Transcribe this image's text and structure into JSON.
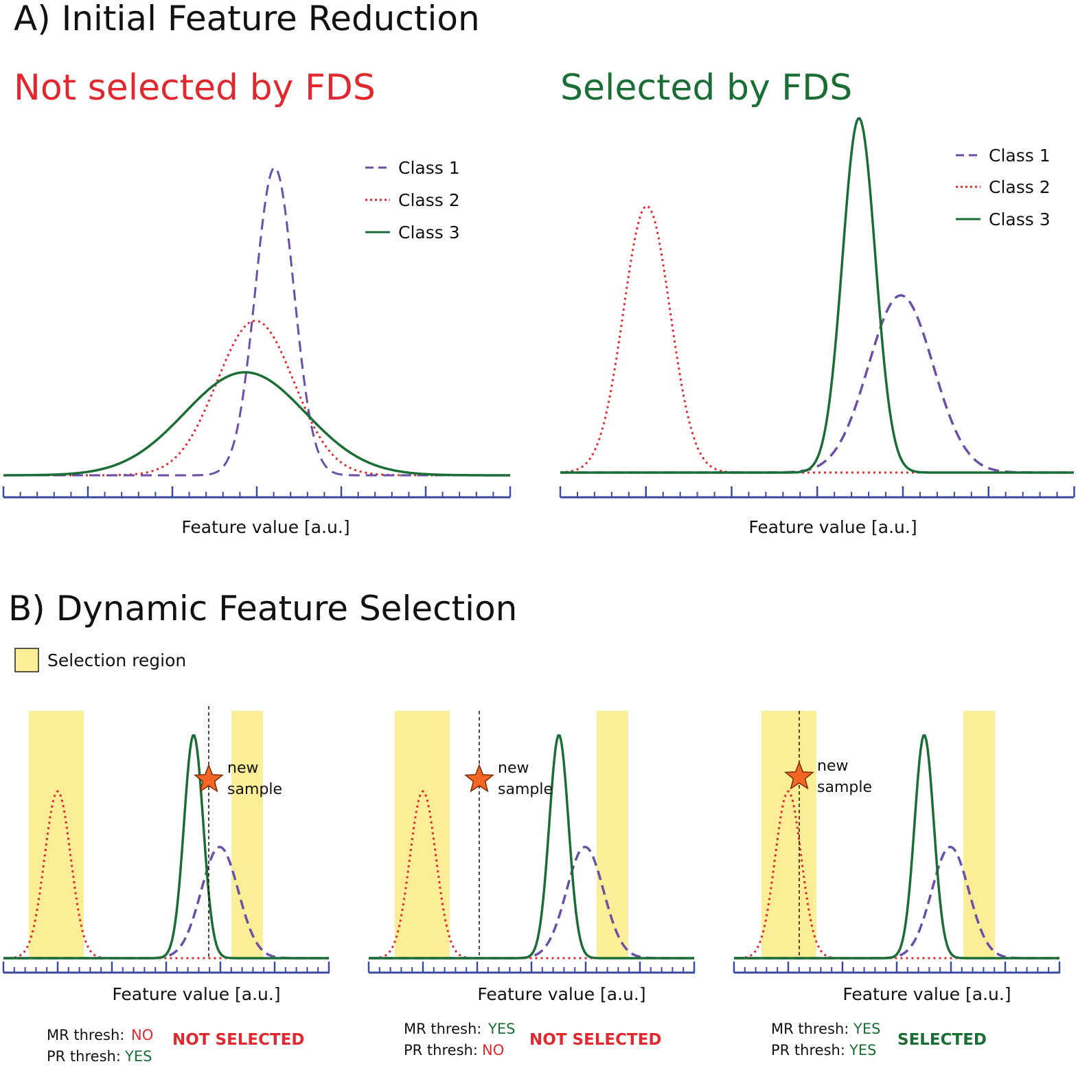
{
  "colors": {
    "class1": "#6a4fa8",
    "class2": "#e0292f",
    "class3": "#1a6e35",
    "axis": "#3a4aa0",
    "selection": "#fbee96",
    "star": "#f26522",
    "red_text": "#e0292f",
    "green_text": "#1a6e35"
  },
  "section_a": {
    "title": "A)  Initial Feature Reduction",
    "panel_left": {
      "heading": "Not selected by FDS",
      "xlabel": "Feature value [a.u.]",
      "legend": [
        "Class 1",
        "Class 2",
        "Class 3"
      ]
    },
    "panel_right": {
      "heading": "Selected by FDS",
      "xlabel": "Feature value [a.u.]",
      "legend": [
        "Class 1",
        "Class 2",
        "Class 3"
      ]
    }
  },
  "section_b": {
    "title": "B)  Dynamic Feature Selection",
    "legend_label": "Selection region",
    "panels": [
      {
        "xlabel": "Feature value [a.u.]",
        "star_label_1": "new",
        "star_label_2": "sample",
        "mr_label": "MR thresh:",
        "mr_value": "NO",
        "mr_ok": false,
        "pr_label": "PR thresh:",
        "pr_value": "YES",
        "pr_ok": true,
        "result": "NOT SELECTED",
        "selected": false
      },
      {
        "xlabel": "Feature value [a.u.]",
        "star_label_1": "new",
        "star_label_2": "sample",
        "mr_label": "MR thresh:",
        "mr_value": "YES",
        "mr_ok": true,
        "pr_label": "PR thresh:",
        "pr_value": "NO",
        "pr_ok": false,
        "result": "NOT SELECTED",
        "selected": false
      },
      {
        "xlabel": "Feature value [a.u.]",
        "star_label_1": "new",
        "star_label_2": "sample",
        "mr_label": "MR thresh:",
        "mr_value": "YES",
        "mr_ok": true,
        "pr_label": "PR thresh:",
        "pr_value": "YES",
        "pr_ok": true,
        "result": "SELECTED",
        "selected": true
      }
    ]
  }
}
